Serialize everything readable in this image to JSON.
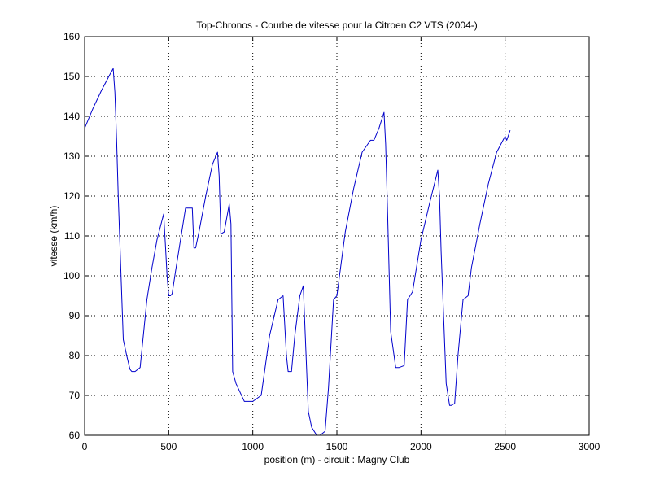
{
  "chart_data": {
    "type": "line",
    "title": "Top-Chronos - Courbe de vitesse pour la Citroen C2 VTS (2004-)",
    "xlabel": "position (m) - circuit : Magny Club",
    "ylabel": "vitesse (km/h)",
    "xlim": [
      0,
      3000
    ],
    "ylim": [
      60,
      160
    ],
    "xticks": [
      0,
      500,
      1000,
      1500,
      2000,
      2500,
      3000
    ],
    "yticks": [
      60,
      70,
      80,
      90,
      100,
      110,
      120,
      130,
      140,
      150,
      160
    ],
    "grid": true,
    "line_color": "#0000cc",
    "series": [
      {
        "x": [
          0,
          50,
          100,
          150,
          170,
          180,
          190,
          200,
          230,
          250,
          270,
          280,
          300,
          330,
          370,
          400,
          430,
          470,
          480,
          490,
          500,
          510,
          520,
          540,
          570,
          600,
          640,
          650,
          660,
          680,
          720,
          760,
          790,
          800,
          810,
          830,
          860,
          870,
          880,
          900,
          950,
          1000,
          1050,
          1100,
          1150,
          1180,
          1200,
          1210,
          1230,
          1250,
          1280,
          1300,
          1330,
          1350,
          1380,
          1400,
          1430,
          1450,
          1480,
          1500,
          1550,
          1600,
          1650,
          1700,
          1720,
          1750,
          1780,
          1790,
          1800,
          1820,
          1850,
          1870,
          1900,
          1920,
          1950,
          2000,
          2050,
          2100,
          2110,
          2120,
          2150,
          2170,
          2180,
          2200,
          2220,
          2250,
          2280,
          2300,
          2350,
          2400,
          2450,
          2500,
          2510,
          2530
        ],
        "y": [
          137,
          142,
          146.5,
          150.5,
          152,
          146,
          134,
          120,
          84,
          80,
          76.5,
          76,
          76,
          77,
          94,
          102,
          109,
          115.5,
          108,
          100,
          95,
          95,
          95.5,
          101,
          109,
          117,
          117,
          107,
          107,
          111,
          120,
          128,
          131,
          125,
          110.5,
          111,
          118,
          113,
          76,
          73,
          68.5,
          68.5,
          70,
          85,
          94,
          95,
          80,
          76,
          76,
          85,
          95,
          97.5,
          66,
          62,
          60,
          60,
          61,
          72,
          94,
          95,
          111,
          122,
          131,
          134,
          134,
          137,
          141,
          133,
          118,
          86,
          77,
          77,
          77.5,
          94,
          96,
          109,
          118,
          126.5,
          120,
          106,
          73,
          67.5,
          67.5,
          68,
          80,
          94,
          95,
          102,
          113,
          123,
          131,
          135,
          134,
          136.5
        ]
      }
    ]
  }
}
